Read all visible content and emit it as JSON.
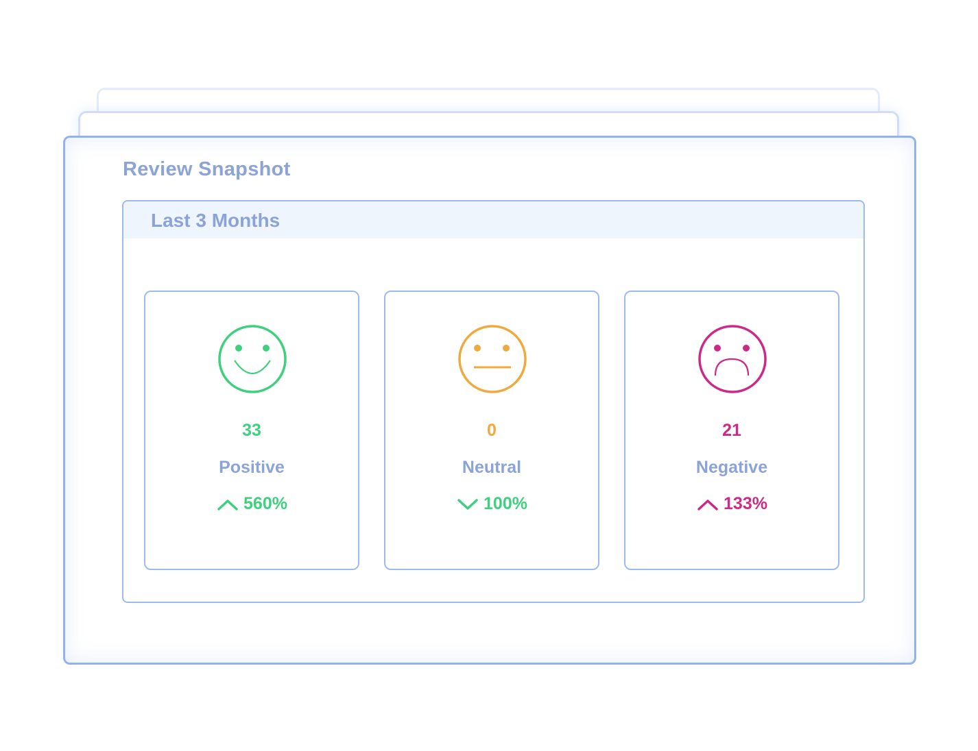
{
  "title": "Review Snapshot",
  "period_label": "Last 3 Months",
  "colors": {
    "positive": "#3fd07d",
    "neutral": "#eeaa3e",
    "negative": "#cc2a86",
    "label": "#8ba3d6",
    "border": "#9dbaf0"
  },
  "tiles": [
    {
      "icon": "smile-face-icon",
      "count": "33",
      "label": "Positive",
      "change_icon": "chevron-up-icon",
      "change": "560%",
      "face_color": "#3fd07d",
      "count_color": "#3fd07d",
      "change_color": "#3fd07d"
    },
    {
      "icon": "neutral-face-icon",
      "count": "0",
      "label": "Neutral",
      "change_icon": "chevron-down-icon",
      "change": "100%",
      "face_color": "#eeaa3e",
      "count_color": "#eeaa3e",
      "change_color": "#3fd07d"
    },
    {
      "icon": "sad-face-icon",
      "count": "21",
      "label": "Negative",
      "change_icon": "chevron-up-icon",
      "change": "133%",
      "face_color": "#cc2a86",
      "count_color": "#cc2a86",
      "change_color": "#cc2a86"
    }
  ]
}
